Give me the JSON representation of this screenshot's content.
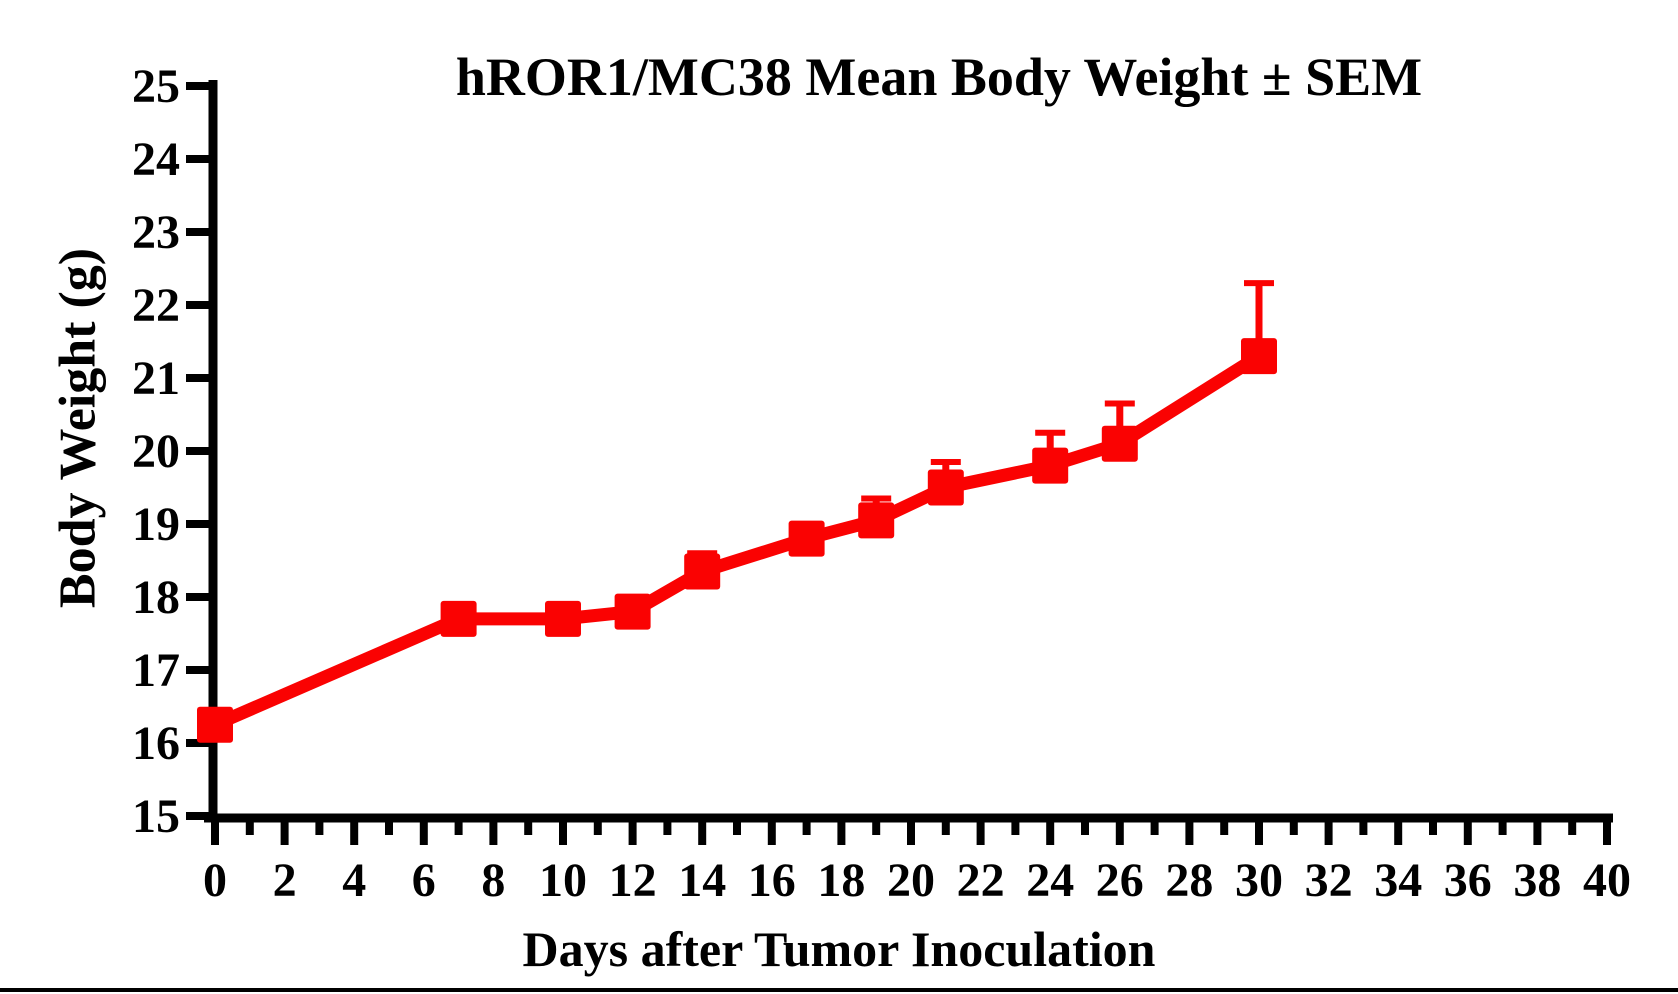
{
  "page": {
    "background": "#ffffff",
    "frame_color": "#000000"
  },
  "chart_data": {
    "type": "line",
    "title": "hROR1/MC38 Mean Body Weight ± SEM",
    "xlabel": "Days after Tumor Inoculation",
    "ylabel": "Body Weight (g)",
    "xlim": [
      0,
      40
    ],
    "ylim": [
      15,
      25
    ],
    "x_major_ticks": [
      0,
      2,
      4,
      6,
      8,
      10,
      12,
      14,
      16,
      18,
      20,
      22,
      24,
      26,
      28,
      30,
      32,
      34,
      36,
      38,
      40
    ],
    "x_minor_tick_step": 1,
    "y_ticks": [
      15,
      16,
      17,
      18,
      19,
      20,
      21,
      22,
      23,
      24,
      25
    ],
    "grid": false,
    "legend": "none",
    "axis_color": "#000000",
    "series": [
      {
        "color": "#FA0202",
        "marker": "square",
        "error_bars": "upper_sem_only",
        "x": [
          0,
          7,
          10,
          12,
          14,
          17,
          19,
          21,
          24,
          26,
          30
        ],
        "y": [
          16.25,
          17.7,
          17.7,
          17.8,
          18.35,
          18.8,
          19.05,
          19.5,
          19.8,
          20.1,
          21.3
        ],
        "sem_upper": [
          0,
          0,
          0,
          0,
          0.25,
          0,
          0.3,
          0.35,
          0.45,
          0.55,
          1.0
        ]
      }
    ]
  }
}
